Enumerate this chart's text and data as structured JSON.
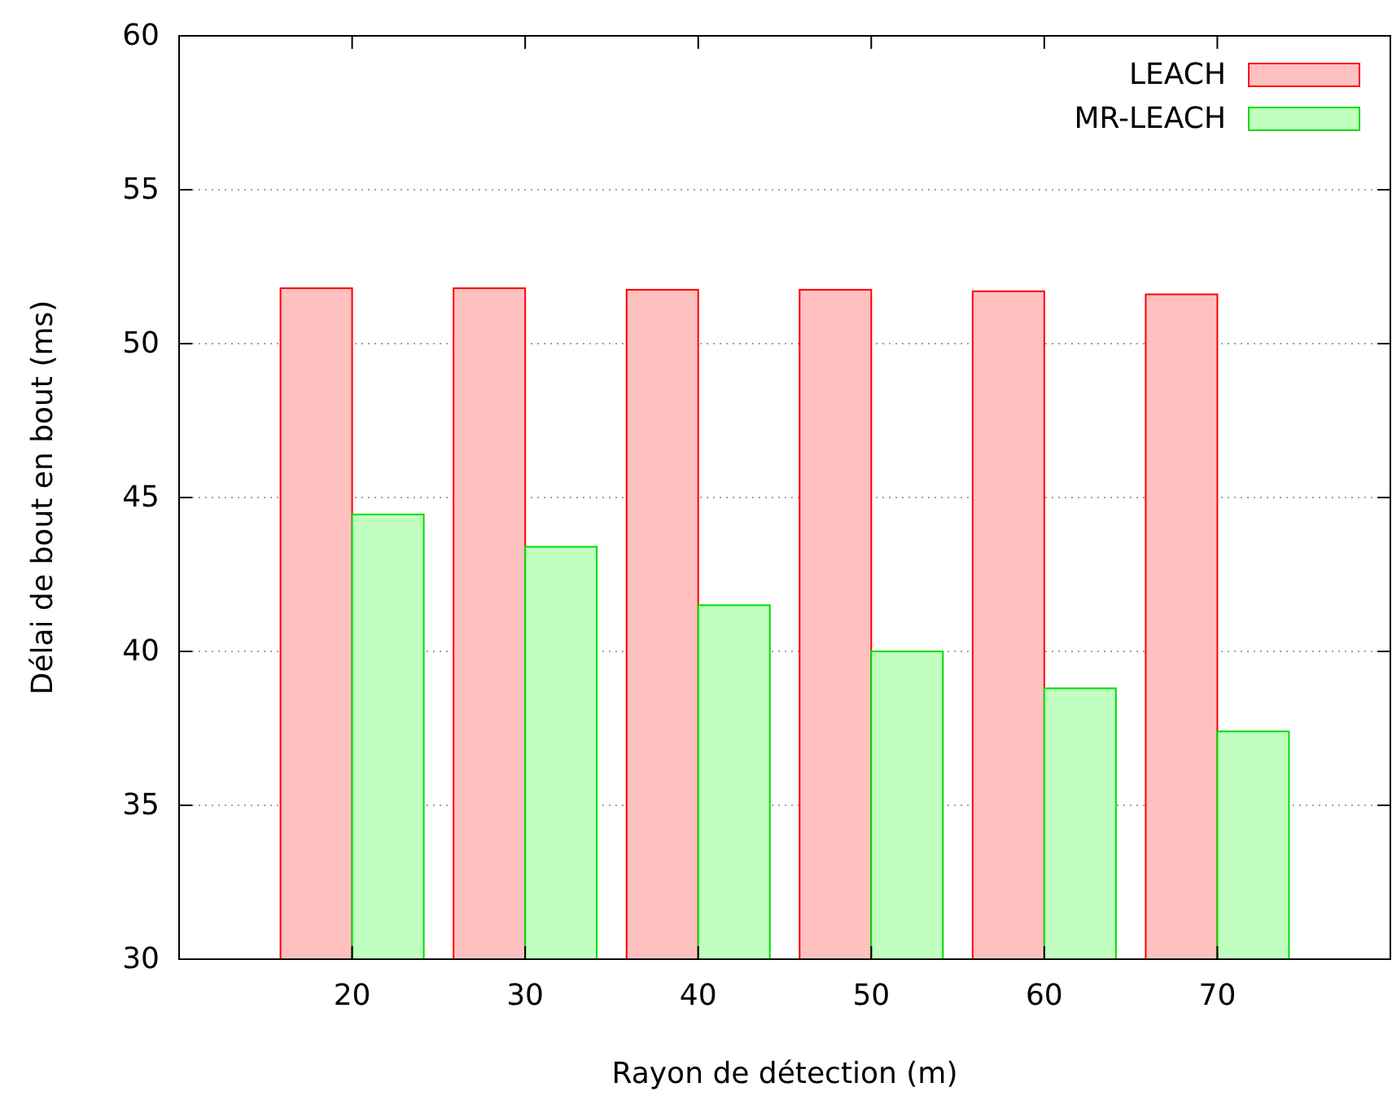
{
  "chart_data": {
    "type": "bar",
    "xlabel": "Rayon de détection (m)",
    "ylabel": "Délai de bout en bout (ms)",
    "categories": [
      "20",
      "30",
      "40",
      "50",
      "60",
      "70"
    ],
    "series": [
      {
        "name": "LEACH",
        "color": "#ffc0c0",
        "values": [
          51.8,
          51.8,
          51.75,
          51.75,
          51.7,
          51.6
        ]
      },
      {
        "name": "MR-LEACH",
        "color": "#c0ffc0",
        "values": [
          44.45,
          43.4,
          41.5,
          40.0,
          38.8,
          37.4
        ]
      }
    ],
    "ylim": [
      30,
      60
    ],
    "yticks": [
      30,
      35,
      40,
      45,
      50,
      55,
      60
    ],
    "grid": "y",
    "legend": "top right"
  }
}
